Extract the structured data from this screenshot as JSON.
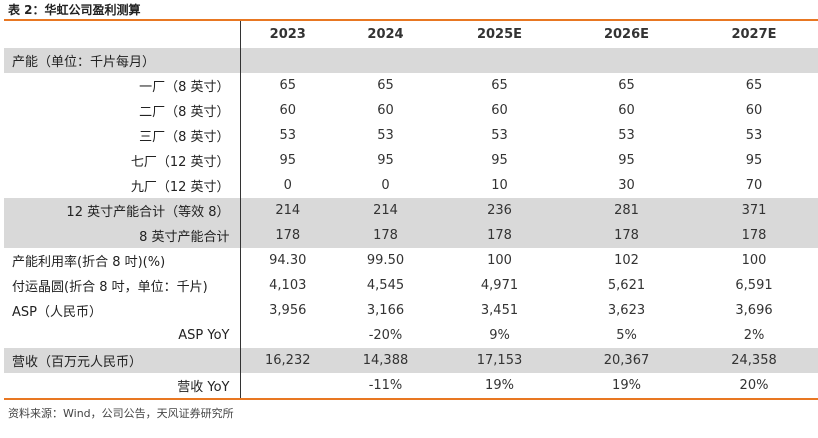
{
  "title": "表 2：华虹公司盈利测算",
  "years": [
    "2023",
    "2024",
    "2025E",
    "2026E",
    "2027E"
  ],
  "rows": [
    {
      "label": "产能（单位：千片每月）",
      "values": [
        "",
        "",
        "",
        "",
        ""
      ]
    },
    {
      "label": "一厂（8 英寸）",
      "values": [
        "65",
        "65",
        "65",
        "65",
        "65"
      ]
    },
    {
      "label": "二厂（8 英寸）",
      "values": [
        "60",
        "60",
        "60",
        "60",
        "60"
      ]
    },
    {
      "label": "三厂（8 英寸）",
      "values": [
        "53",
        "53",
        "53",
        "53",
        "53"
      ]
    },
    {
      "label": "七厂（12 英寸）",
      "values": [
        "95",
        "95",
        "95",
        "95",
        "95"
      ]
    },
    {
      "label": "九厂（12 英寸）",
      "values": [
        "0",
        "0",
        "10",
        "30",
        "70"
      ]
    },
    {
      "label": "12 英寸产能合计（等效 8）",
      "values": [
        "214",
        "214",
        "236",
        "281",
        "371"
      ]
    },
    {
      "label": "8 英寸产能合计",
      "values": [
        "178",
        "178",
        "178",
        "178",
        "178"
      ]
    },
    {
      "label": "产能利用率(折合 8 吋)(%)",
      "values": [
        "94.30",
        "99.50",
        "100",
        "102",
        "100"
      ]
    },
    {
      "label": "付运晶圆(折合 8 吋，单位：千片)",
      "values": [
        "4,103",
        "4,545",
        "4,971",
        "5,621",
        "6,591"
      ]
    },
    {
      "label": "ASP（人民币）",
      "values": [
        "3,956",
        "3,166",
        "3,451",
        "3,623",
        "3,696"
      ]
    },
    {
      "label": "ASP YoY",
      "values": [
        "",
        "-20%",
        "9%",
        "5%",
        "2%"
      ]
    },
    {
      "label": "营收（百万元人民币）",
      "values": [
        "16,232",
        "14,388",
        "17,153",
        "20,367",
        "24,358"
      ]
    },
    {
      "label": "营收 YoY",
      "values": [
        "",
        "-11%",
        "19%",
        "19%",
        "20%"
      ]
    }
  ],
  "source": "资料来源：Wind，公司公告，天风证券研究所"
}
